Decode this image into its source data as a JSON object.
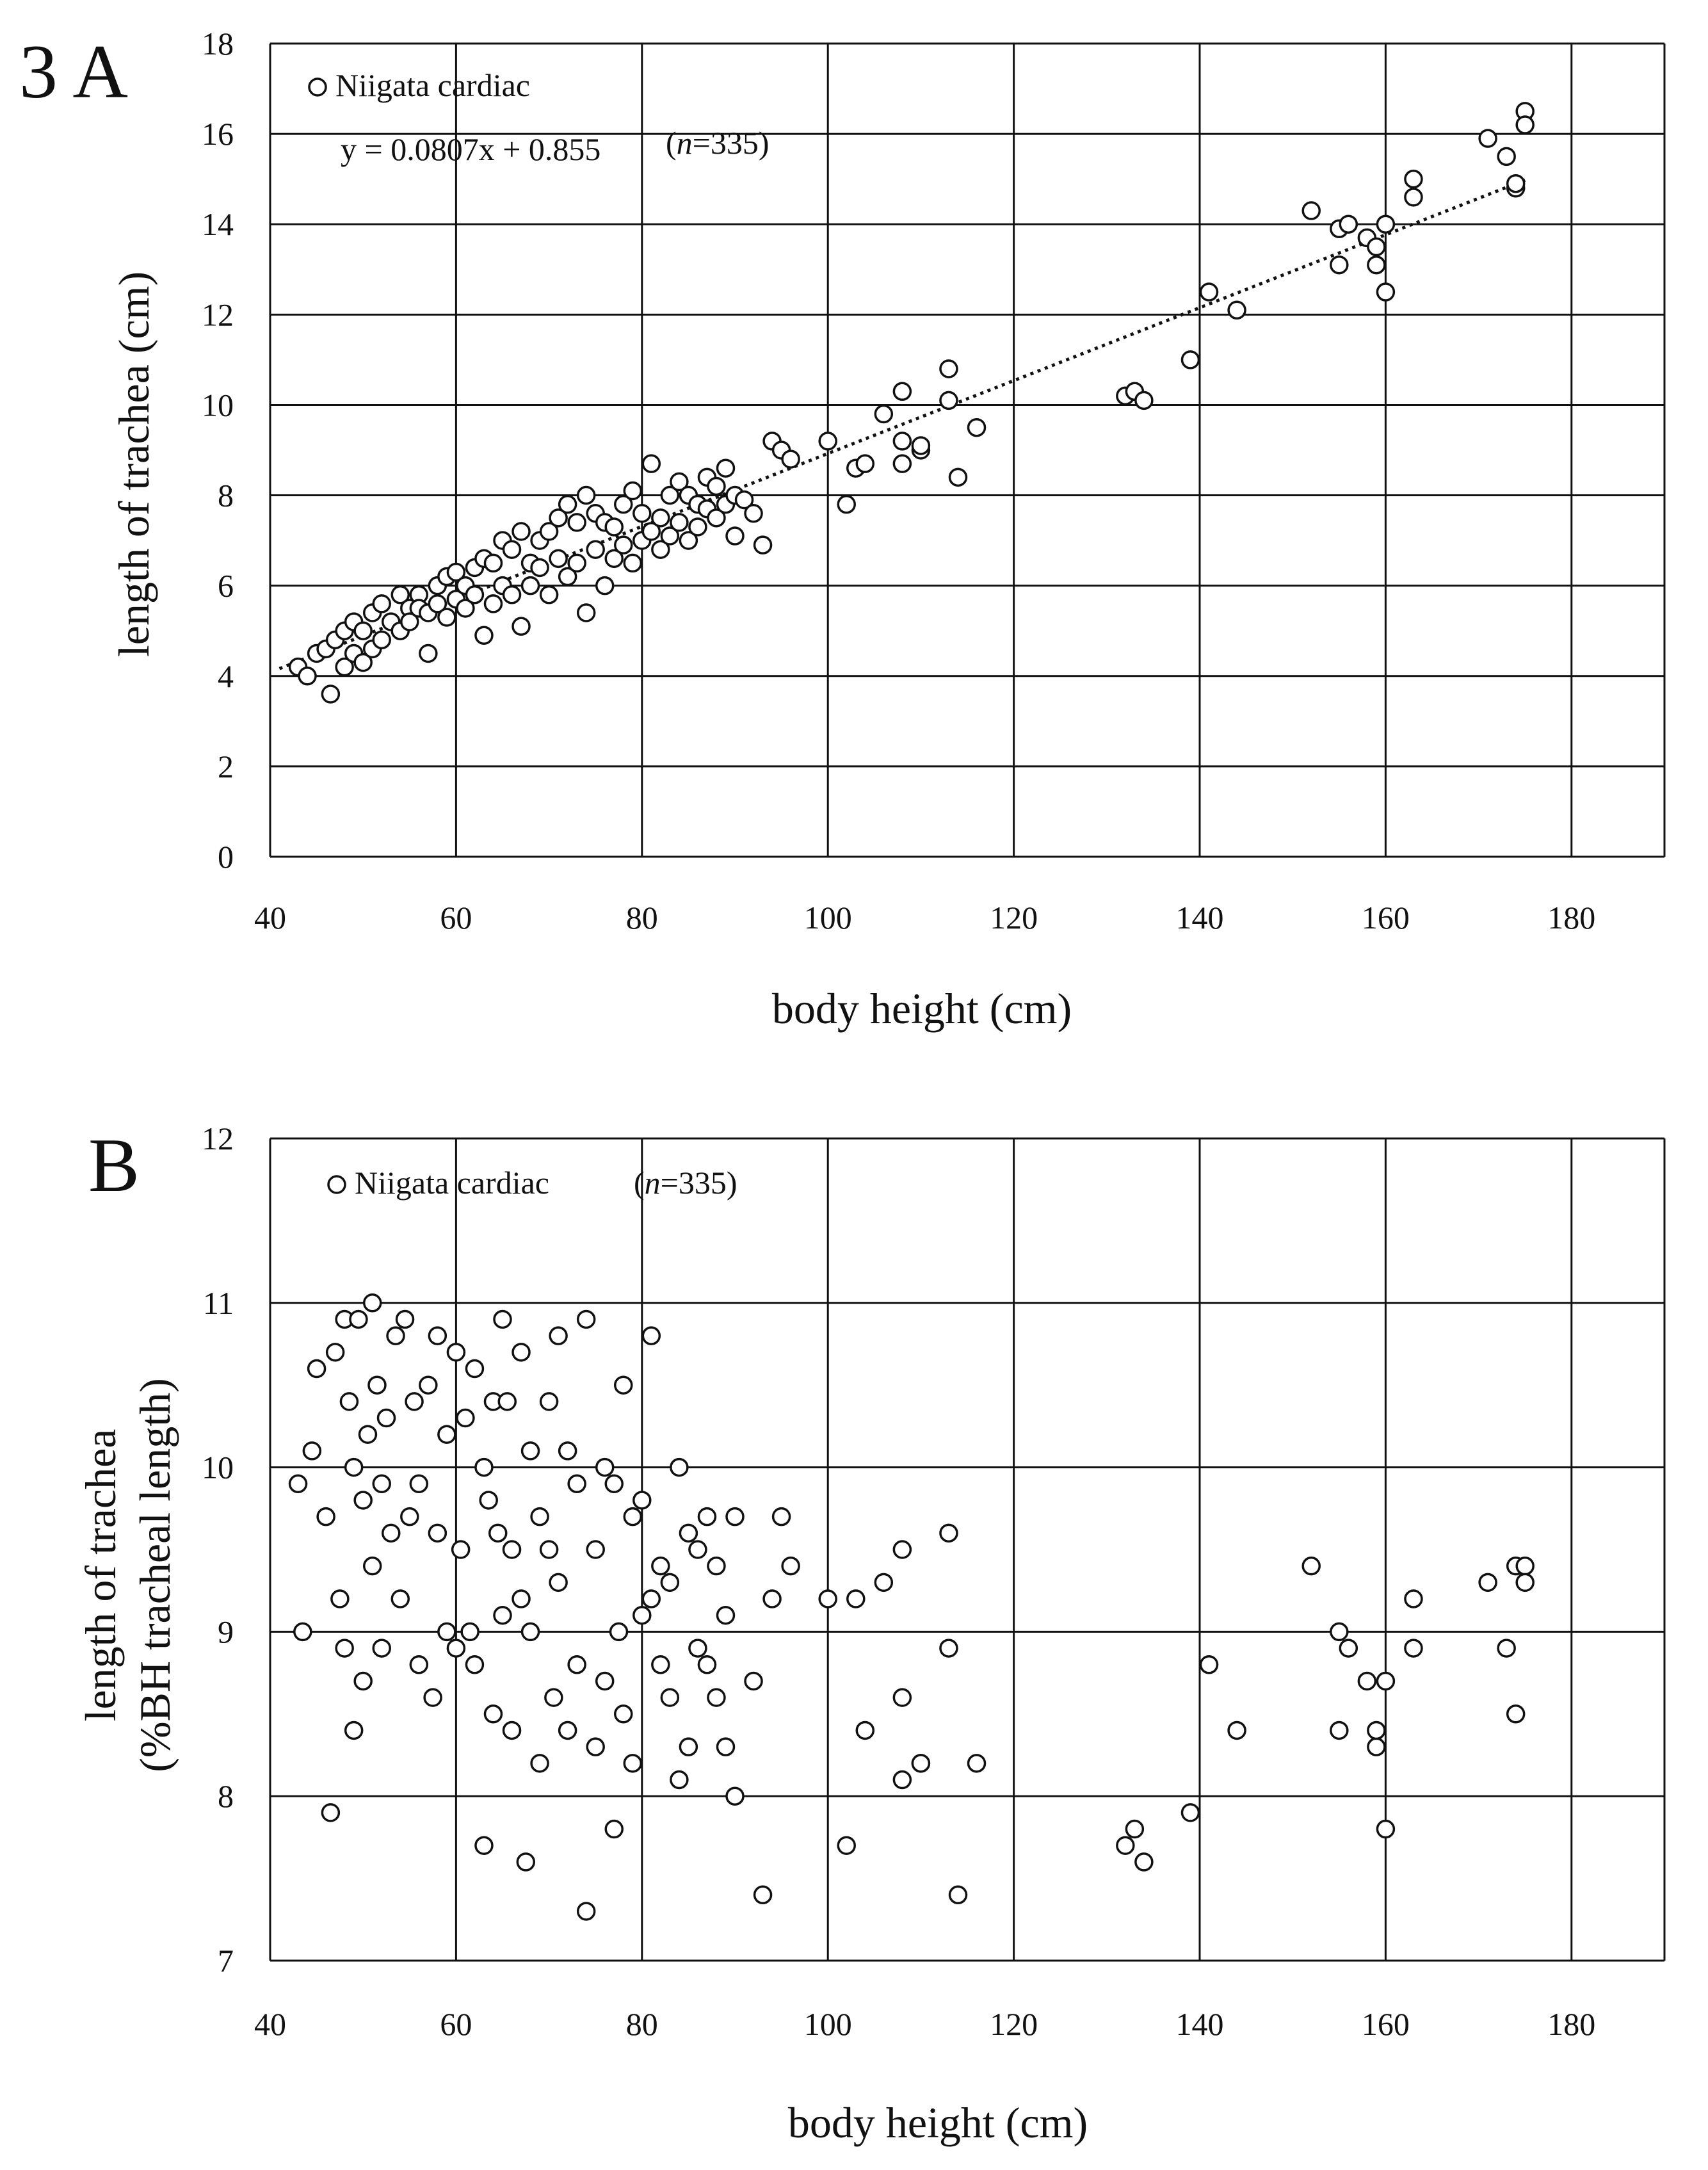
{
  "figure_label_a": "3 A",
  "figure_label_b": "B",
  "chart_data": [
    {
      "type": "scatter",
      "panel": "A",
      "xlabel": "body height (cm)",
      "ylabel": "length of trachea (cm)",
      "xlim": [
        40,
        190
      ],
      "ylim": [
        0,
        18
      ],
      "xticks": [
        40,
        60,
        80,
        100,
        120,
        140,
        160,
        180
      ],
      "yticks": [
        0,
        2,
        4,
        6,
        8,
        10,
        12,
        14,
        16,
        18
      ],
      "grid": true,
      "legend": "Niigata cardiac",
      "legend_position": "top-left",
      "equation": "y = 0.0807x + 0.855",
      "n_label": "(n=335)",
      "n_label_n": "n",
      "n_label_value": "=335)",
      "trendline": {
        "slope": 0.0807,
        "intercept": 0.855,
        "x_range": [
          41,
          175
        ]
      },
      "x": [
        43,
        44,
        45,
        46,
        46.5,
        47,
        48,
        48,
        49,
        49,
        50,
        50,
        51,
        51,
        52,
        52,
        53,
        54,
        54,
        55,
        55,
        56,
        56,
        57,
        57,
        58,
        58,
        59,
        59,
        60,
        60,
        61,
        61,
        62,
        62,
        63,
        63,
        64,
        64,
        65,
        65,
        66,
        66,
        67,
        67,
        68,
        68,
        69,
        69,
        70,
        70,
        71,
        71,
        72,
        72,
        73,
        73,
        74,
        74,
        75,
        75,
        76,
        76,
        77,
        77,
        78,
        78,
        79,
        79,
        80,
        80,
        81,
        81,
        82,
        82,
        83,
        83,
        84,
        84,
        85,
        85,
        86,
        86,
        87,
        87,
        88,
        88,
        89,
        89,
        90,
        90,
        91,
        92,
        93,
        94,
        95,
        96,
        100,
        102,
        103,
        104,
        106,
        108,
        108,
        108,
        110,
        110,
        113,
        113,
        114,
        116,
        132,
        133,
        134,
        139,
        141,
        144,
        152,
        155,
        155,
        156,
        158,
        159,
        159,
        160,
        160,
        163,
        163,
        171,
        173,
        174,
        174,
        175,
        175
      ],
      "y": [
        4.2,
        4.0,
        4.5,
        4.6,
        3.6,
        4.8,
        5.0,
        4.2,
        5.2,
        4.5,
        5.0,
        4.3,
        5.4,
        4.6,
        5.6,
        4.8,
        5.2,
        5.8,
        5.0,
        5.5,
        5.2,
        5.8,
        5.5,
        5.4,
        4.5,
        6.0,
        5.6,
        6.2,
        5.3,
        6.3,
        5.7,
        6.0,
        5.5,
        6.4,
        5.8,
        6.6,
        4.9,
        6.5,
        5.6,
        7.0,
        6.0,
        6.8,
        5.8,
        7.2,
        5.1,
        6.5,
        6.0,
        7.0,
        6.4,
        7.2,
        5.8,
        7.5,
        6.6,
        7.8,
        6.2,
        7.4,
        6.5,
        8.0,
        5.4,
        7.6,
        6.8,
        7.4,
        6.0,
        7.3,
        6.6,
        7.8,
        6.9,
        8.1,
        6.5,
        7.6,
        7.0,
        8.7,
        7.2,
        7.5,
        6.8,
        8.0,
        7.1,
        8.3,
        7.4,
        8.0,
        7.0,
        7.8,
        7.3,
        8.4,
        7.7,
        8.2,
        7.5,
        8.6,
        7.8,
        8.0,
        7.1,
        7.9,
        7.6,
        6.9,
        9.2,
        9.0,
        8.8,
        9.2,
        7.8,
        8.6,
        8.7,
        9.8,
        10.3,
        9.2,
        8.7,
        9.0,
        9.1,
        10.8,
        10.1,
        8.4,
        9.5,
        10.2,
        10.3,
        10.1,
        11.0,
        12.5,
        12.1,
        14.3,
        13.9,
        13.1,
        14.0,
        13.7,
        13.1,
        13.5,
        14.0,
        12.5,
        14.6,
        15.0,
        15.9,
        15.5,
        14.8,
        14.9,
        16.5,
        16.2
      ]
    },
    {
      "type": "scatter",
      "panel": "B",
      "xlabel": "body height (cm)",
      "ylabel_line1": "length of trachea",
      "ylabel_line2": "(%BH tracheal length)",
      "xlim": [
        40,
        190
      ],
      "ylim": [
        7,
        12
      ],
      "xticks": [
        40,
        60,
        80,
        100,
        120,
        140,
        160,
        180
      ],
      "yticks": [
        7,
        8,
        9,
        10,
        11,
        12
      ],
      "grid": true,
      "legend": "Niigata cardiac",
      "legend_position": "top-left",
      "n_label": "(n=335)",
      "n_label_n": "n",
      "n_label_value": "=335)",
      "x": [
        43,
        43.5,
        44.5,
        45,
        46,
        46.5,
        47,
        47.5,
        48,
        48,
        48.5,
        49,
        49,
        49.5,
        50,
        50,
        50.5,
        51,
        51,
        51.5,
        52,
        52,
        52.5,
        53,
        53.5,
        54,
        54.5,
        55,
        55.5,
        56,
        56,
        57,
        57.5,
        58,
        58,
        59,
        59,
        60,
        60,
        60.5,
        61,
        61.5,
        62,
        62,
        63,
        63,
        63.5,
        64,
        64,
        64.5,
        65,
        65,
        65.5,
        66,
        66,
        67,
        67,
        67.5,
        68,
        68,
        69,
        69,
        70,
        70,
        70.5,
        71,
        71,
        72,
        72,
        73,
        73,
        74,
        74,
        75,
        75,
        76,
        76,
        77,
        77,
        77.5,
        78,
        78,
        79,
        79,
        80,
        80,
        81,
        81,
        82,
        82,
        83,
        83,
        84,
        84,
        85,
        85,
        86,
        86,
        87,
        87,
        88,
        88,
        89,
        89,
        90,
        90,
        92,
        93,
        94,
        95,
        96,
        100,
        102,
        103,
        104,
        106,
        108,
        108,
        108,
        110,
        110,
        113,
        113,
        114,
        116,
        132,
        133,
        134,
        139,
        141,
        144,
        152,
        155,
        155,
        156,
        158,
        159,
        159,
        160,
        160,
        163,
        163,
        171,
        173,
        174,
        174,
        175,
        175
      ],
      "y": [
        9.9,
        9.0,
        10.1,
        10.6,
        9.7,
        7.9,
        10.7,
        9.2,
        10.9,
        8.9,
        10.4,
        10.0,
        8.4,
        10.9,
        9.8,
        8.7,
        10.2,
        11.0,
        9.4,
        10.5,
        9.9,
        8.9,
        10.3,
        9.6,
        10.8,
        9.2,
        10.9,
        9.7,
        10.4,
        8.8,
        9.9,
        10.5,
        8.6,
        9.6,
        10.8,
        10.2,
        9.0,
        10.7,
        8.9,
        9.5,
        10.3,
        9.0,
        10.6,
        8.8,
        10.0,
        7.7,
        9.8,
        10.4,
        8.5,
        9.6,
        10.9,
        9.1,
        10.4,
        9.5,
        8.4,
        10.7,
        9.2,
        7.6,
        9.0,
        10.1,
        9.7,
        8.2,
        10.4,
        9.5,
        8.6,
        10.8,
        9.3,
        10.1,
        8.4,
        9.9,
        8.8,
        10.9,
        7.3,
        9.5,
        8.3,
        10.0,
        8.7,
        9.9,
        7.8,
        9.0,
        10.5,
        8.5,
        9.7,
        8.2,
        9.1,
        9.8,
        10.8,
        9.2,
        8.8,
        9.4,
        8.6,
        9.3,
        10.0,
        8.1,
        9.6,
        8.3,
        9.5,
        8.9,
        9.7,
        8.8,
        9.4,
        8.6,
        9.1,
        8.3,
        9.7,
        8.0,
        8.7,
        7.4,
        9.2,
        9.7,
        9.4,
        9.2,
        7.7,
        9.2,
        8.4,
        9.3,
        9.5,
        8.6,
        8.1,
        8.2,
        8.2,
        9.6,
        8.9,
        7.4,
        8.2,
        7.7,
        7.8,
        7.6,
        7.9,
        8.8,
        8.4,
        9.4,
        9.0,
        8.4,
        8.9,
        8.7,
        8.3,
        8.4,
        8.7,
        7.8,
        9.2,
        8.9,
        9.3,
        8.9,
        9.4,
        8.5,
        9.4,
        9.3
      ]
    }
  ]
}
